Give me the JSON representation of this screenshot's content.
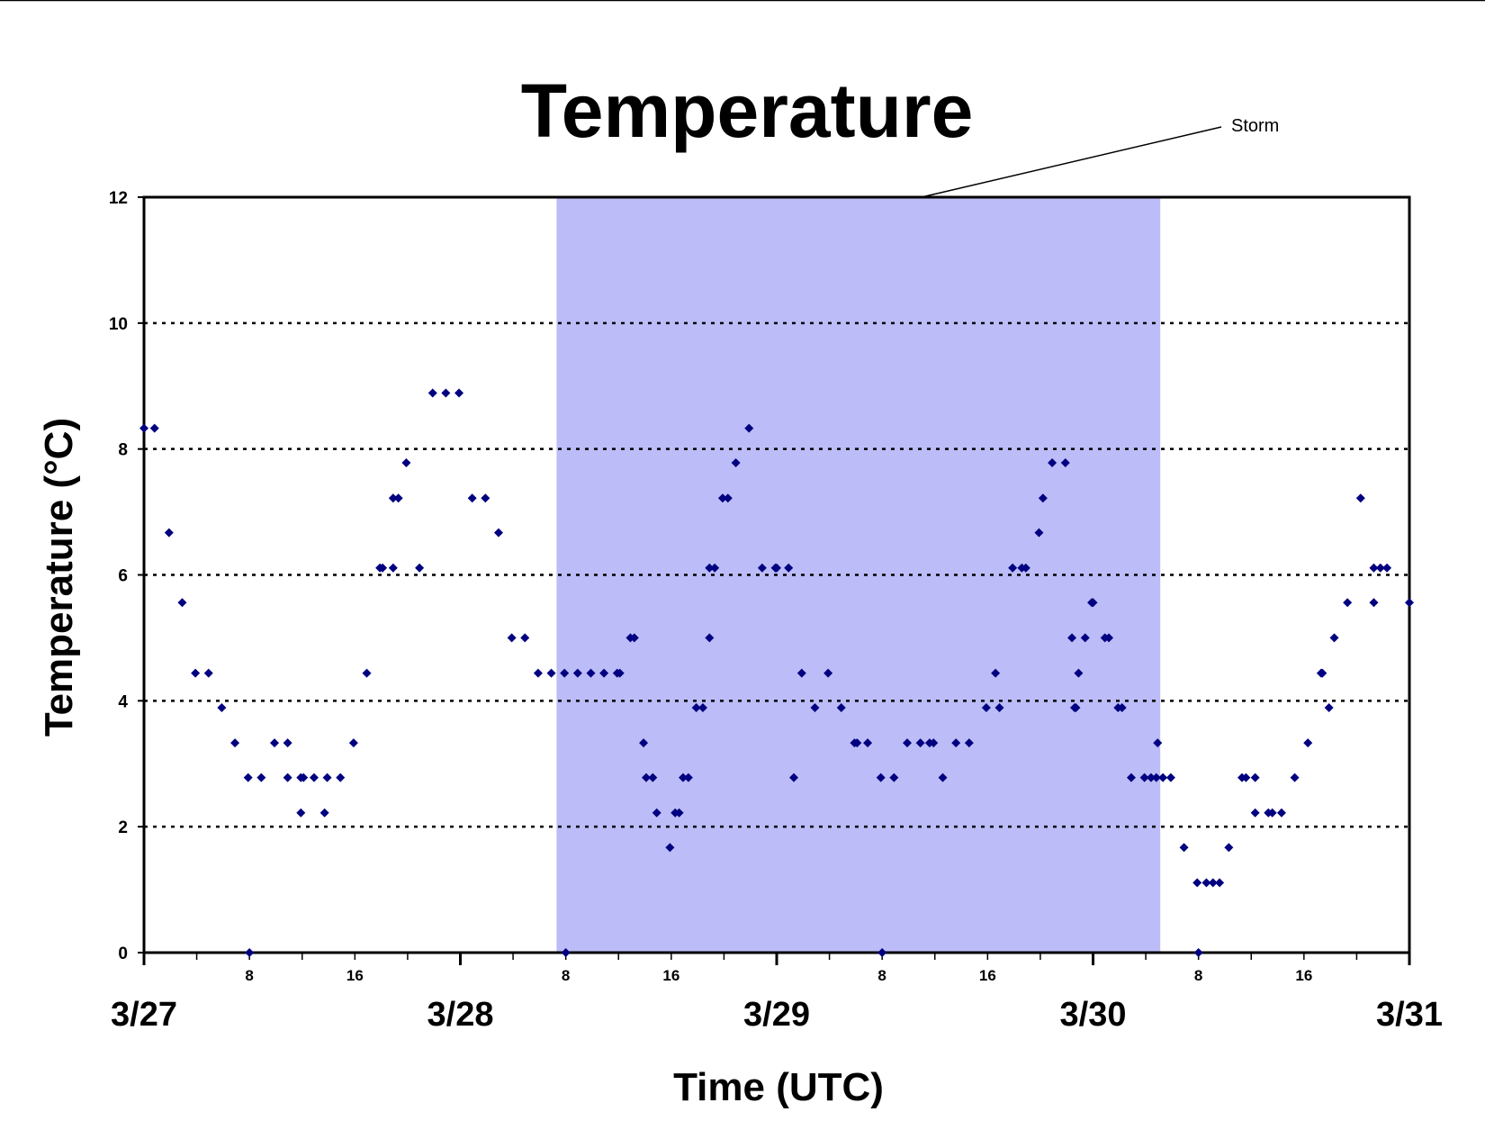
{
  "chart_data": {
    "type": "scatter",
    "title": "Temperature",
    "xlabel": "Time (UTC)",
    "ylabel": "Temperature (°C)",
    "ylim": [
      0,
      12
    ],
    "yticks": [
      "0",
      "2",
      "4",
      "6",
      "8",
      "10",
      "12"
    ],
    "grid": "horizontal dotted at 2, 4, 6, 8, 10",
    "x_unit": "hours",
    "x_range_hours": [
      0,
      96
    ],
    "date_labels": [
      {
        "label": "3/27",
        "hour": 0
      },
      {
        "label": "3/28",
        "hour": 24
      },
      {
        "label": "3/29",
        "hour": 48
      },
      {
        "label": "3/30",
        "hour": 72
      },
      {
        "label": "3/31",
        "hour": 96
      }
    ],
    "hour_labels": [
      {
        "label": "8",
        "hour": 8
      },
      {
        "label": "16",
        "hour": 16
      },
      {
        "label": "8",
        "hour": 32
      },
      {
        "label": "16",
        "hour": 40
      },
      {
        "label": "8",
        "hour": 56
      },
      {
        "label": "16",
        "hour": 64
      },
      {
        "label": "8",
        "hour": 80
      },
      {
        "label": "16",
        "hour": 88
      }
    ],
    "annotation": {
      "text": "Storm",
      "start_hour": 31.3,
      "end_hour": 77.1,
      "color": "#bcbcf8"
    },
    "marker_color": "#000080",
    "points": [
      [
        0,
        8.33
      ],
      [
        0.8,
        8.33
      ],
      [
        1.9,
        6.67
      ],
      [
        2.9,
        5.56
      ],
      [
        3.9,
        4.44
      ],
      [
        4.9,
        4.44
      ],
      [
        5.9,
        3.89
      ],
      [
        6.9,
        3.33
      ],
      [
        7.9,
        2.78
      ],
      [
        8.9,
        2.78
      ],
      [
        9.9,
        3.33
      ],
      [
        10.9,
        2.78
      ],
      [
        10.9,
        3.33
      ],
      [
        11.9,
        2.22
      ],
      [
        11.9,
        2.78
      ],
      [
        12.1,
        2.78
      ],
      [
        12.9,
        2.78
      ],
      [
        13.7,
        2.22
      ],
      [
        13.9,
        2.78
      ],
      [
        14.9,
        2.78
      ],
      [
        15.9,
        3.33
      ],
      [
        16.9,
        4.44
      ],
      [
        17.9,
        6.11
      ],
      [
        18.1,
        6.11
      ],
      [
        18.9,
        6.11
      ],
      [
        18.9,
        7.22
      ],
      [
        19.3,
        7.22
      ],
      [
        19.9,
        7.78
      ],
      [
        20.9,
        6.11
      ],
      [
        21.9,
        8.89
      ],
      [
        22.9,
        8.89
      ],
      [
        23.9,
        8.89
      ],
      [
        24.9,
        7.22
      ],
      [
        25.9,
        7.22
      ],
      [
        26.9,
        6.67
      ],
      [
        27.9,
        5.0
      ],
      [
        28.9,
        5.0
      ],
      [
        29.9,
        4.44
      ],
      [
        30.9,
        4.44
      ],
      [
        31.9,
        4.44
      ],
      [
        32.9,
        4.44
      ],
      [
        33.9,
        4.44
      ],
      [
        34.9,
        4.44
      ],
      [
        35.9,
        4.44
      ],
      [
        36.1,
        4.44
      ],
      [
        36.9,
        5.0
      ],
      [
        37.2,
        5.0
      ],
      [
        37.9,
        3.33
      ],
      [
        38.1,
        2.78
      ],
      [
        38.6,
        2.78
      ],
      [
        38.9,
        2.22
      ],
      [
        39.9,
        1.67
      ],
      [
        40.3,
        2.22
      ],
      [
        40.6,
        2.22
      ],
      [
        40.9,
        2.78
      ],
      [
        41.3,
        2.78
      ],
      [
        41.9,
        3.89
      ],
      [
        42.4,
        3.89
      ],
      [
        42.9,
        5.0
      ],
      [
        42.9,
        6.11
      ],
      [
        43.3,
        6.11
      ],
      [
        43.9,
        7.22
      ],
      [
        44.3,
        7.22
      ],
      [
        44.9,
        7.78
      ],
      [
        45.9,
        8.33
      ],
      [
        46.9,
        6.11
      ],
      [
        47.9,
        6.11
      ],
      [
        48.0,
        6.11
      ],
      [
        48.9,
        6.11
      ],
      [
        49.3,
        2.78
      ],
      [
        49.9,
        4.44
      ],
      [
        50.9,
        3.89
      ],
      [
        51.9,
        4.44
      ],
      [
        52.9,
        3.89
      ],
      [
        53.9,
        3.33
      ],
      [
        54.1,
        3.33
      ],
      [
        54.9,
        3.33
      ],
      [
        55.9,
        2.78
      ],
      [
        56.9,
        2.78
      ],
      [
        57.9,
        3.33
      ],
      [
        58.9,
        3.33
      ],
      [
        59.6,
        3.33
      ],
      [
        59.9,
        3.33
      ],
      [
        60.6,
        2.78
      ],
      [
        61.6,
        3.33
      ],
      [
        62.6,
        3.33
      ],
      [
        63.9,
        3.89
      ],
      [
        64.6,
        4.44
      ],
      [
        64.9,
        3.89
      ],
      [
        65.9,
        6.11
      ],
      [
        66.6,
        6.11
      ],
      [
        66.9,
        6.11
      ],
      [
        67.9,
        6.67
      ],
      [
        68.2,
        7.22
      ],
      [
        68.9,
        7.78
      ],
      [
        69.9,
        7.78
      ],
      [
        70.4,
        5.0
      ],
      [
        70.6,
        3.89
      ],
      [
        70.7,
        3.89
      ],
      [
        70.9,
        4.44
      ],
      [
        71.4,
        5.0
      ],
      [
        71.9,
        5.56
      ],
      [
        72.0,
        5.56
      ],
      [
        72.9,
        5.0
      ],
      [
        73.2,
        5.0
      ],
      [
        73.9,
        3.89
      ],
      [
        74.2,
        3.89
      ],
      [
        74.9,
        2.78
      ],
      [
        75.9,
        2.78
      ],
      [
        76.4,
        2.78
      ],
      [
        76.8,
        2.78
      ],
      [
        76.9,
        3.33
      ],
      [
        77.3,
        2.78
      ],
      [
        77.9,
        2.78
      ],
      [
        78.9,
        1.67
      ],
      [
        79.9,
        1.11
      ],
      [
        80.6,
        1.11
      ],
      [
        81.1,
        1.11
      ],
      [
        81.6,
        1.11
      ],
      [
        82.3,
        1.67
      ],
      [
        83.3,
        2.78
      ],
      [
        83.6,
        2.78
      ],
      [
        84.3,
        2.78
      ],
      [
        84.3,
        2.22
      ],
      [
        85.3,
        2.22
      ],
      [
        85.6,
        2.22
      ],
      [
        86.3,
        2.22
      ],
      [
        87.3,
        2.78
      ],
      [
        88.3,
        3.33
      ],
      [
        89.3,
        4.44
      ],
      [
        89.4,
        4.44
      ],
      [
        89.9,
        3.89
      ],
      [
        90.3,
        5.0
      ],
      [
        91.3,
        5.56
      ],
      [
        92.3,
        7.22
      ],
      [
        93.3,
        5.56
      ],
      [
        93.3,
        6.11
      ],
      [
        93.8,
        6.11
      ],
      [
        94.3,
        6.11
      ],
      [
        96.0,
        5.56
      ],
      [
        8.0,
        0
      ],
      [
        32.0,
        0
      ],
      [
        56.0,
        0
      ],
      [
        80.0,
        0
      ]
    ]
  }
}
